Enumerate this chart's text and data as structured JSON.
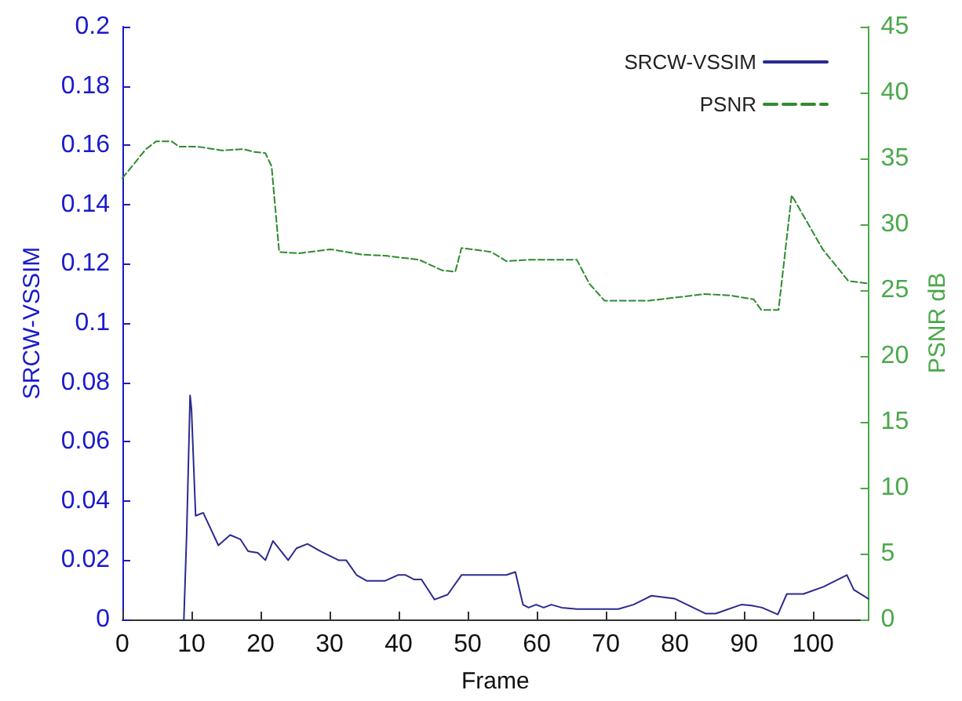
{
  "chart_data": {
    "type": "line",
    "xlabel": "Frame",
    "ylabel": "SRCW-VSSIM",
    "y2label": "PSNR dB",
    "xlim": [
      0,
      108
    ],
    "xticks": [
      0,
      10,
      20,
      30,
      40,
      50,
      60,
      70,
      80,
      90,
      100
    ],
    "ylim": [
      0,
      0.2
    ],
    "yticks": [
      0,
      0.02,
      0.04,
      0.06,
      0.08,
      0.1,
      0.12,
      0.14,
      0.16,
      0.18,
      0.2
    ],
    "y2lim": [
      0,
      45
    ],
    "y2ticks": [
      0,
      5,
      10,
      15,
      20,
      25,
      30,
      35,
      40,
      45
    ],
    "grid": false,
    "legend": "top right",
    "marker": "none",
    "series": [
      {
        "name": "SRCW-VSSIM",
        "color": "#2a2a90",
        "line_style": "solid",
        "x": [
          8.9,
          9.3,
          9.8,
          10,
          10.6,
          11.7,
          13.9,
          15.6,
          17.1,
          18.2,
          19.6,
          20.7,
          21.8,
          24,
          25.2,
          26.8,
          28.7,
          31.3,
          32.4,
          33.9,
          35.4,
          38,
          39.9,
          41,
          42.2,
          43.3,
          45.2,
          47.1,
          49.1,
          51.9,
          55.6,
          56.9,
          58,
          58.8,
          59.9,
          61,
          62.1,
          63.6,
          65.8,
          71.8,
          74,
          76.6,
          80,
          84.4,
          85.9,
          89.6,
          91.1,
          92.6,
          94.9,
          96.2,
          98.6,
          101.5,
          104.9,
          105.9,
          108
        ],
        "values": [
          0,
          0.0285,
          0.0756,
          0.071,
          0.035,
          0.036,
          0.025,
          0.0285,
          0.027,
          0.023,
          0.0225,
          0.02,
          0.0265,
          0.02,
          0.024,
          0.0255,
          0.023,
          0.02,
          0.02,
          0.015,
          0.013,
          0.013,
          0.015,
          0.015,
          0.0135,
          0.0135,
          0.0067,
          0.0084,
          0.015,
          0.015,
          0.015,
          0.016,
          0.005,
          0.004,
          0.005,
          0.004,
          0.005,
          0.004,
          0.0035,
          0.0035,
          0.005,
          0.008,
          0.007,
          0.002,
          0.002,
          0.005,
          0.0047,
          0.004,
          0.0017,
          0.0086,
          0.0086,
          0.011,
          0.015,
          0.01,
          0.007
        ]
      },
      {
        "name": "PSNR",
        "color": "#2e8b2e",
        "axis": "y2",
        "line_style": "dashed",
        "x": [
          0,
          3.4,
          4.9,
          7.1,
          8.2,
          10.8,
          14.5,
          17.5,
          19,
          20.7,
          21.6,
          22.7,
          25.6,
          30.1,
          34.6,
          38.3,
          43,
          46.3,
          48.2,
          49.1,
          53.4,
          55.6,
          58.6,
          65.8,
          67.6,
          69.8,
          76.2,
          84.3,
          88,
          91.4,
          92.5,
          95,
          96.9,
          98,
          101.4,
          105.1,
          108
        ],
        "values": [
          33.5,
          35.7,
          36.3,
          36.3,
          35.9,
          35.9,
          35.6,
          35.7,
          35.5,
          35.4,
          34.4,
          27.9,
          27.8,
          28.1,
          27.7,
          27.6,
          27.3,
          26.5,
          26.4,
          28.2,
          27.9,
          27.2,
          27.3,
          27.3,
          25.5,
          24.2,
          24.2,
          24.7,
          24.6,
          24.3,
          23.5,
          23.5,
          32.2,
          31.2,
          28.1,
          25.7,
          25.5
        ]
      }
    ]
  }
}
